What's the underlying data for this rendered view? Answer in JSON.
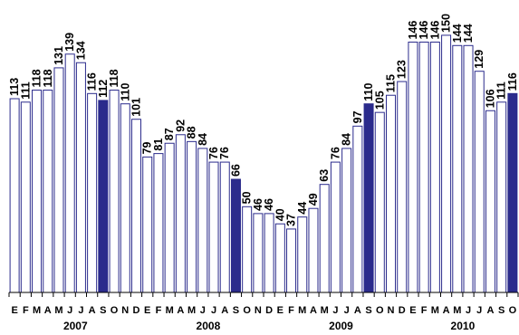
{
  "chart_data": {
    "type": "bar",
    "title": "",
    "xlabel": "",
    "ylabel": "",
    "ylim": [
      0,
      160
    ],
    "grid": false,
    "legend": "none",
    "colors": {
      "bar_fill": "#ffffff",
      "bar_stroke": "#2b2b8c",
      "highlight_fill": "#2b2b8c",
      "axis": "#000000"
    },
    "categories": [
      "E",
      "F",
      "M",
      "A",
      "M",
      "J",
      "J",
      "A",
      "S",
      "O",
      "N",
      "D",
      "E",
      "F",
      "M",
      "A",
      "M",
      "J",
      "J",
      "A",
      "S",
      "O",
      "N",
      "D",
      "E",
      "F",
      "M",
      "A",
      "M",
      "J",
      "J",
      "A",
      "S",
      "O",
      "N",
      "D",
      "E",
      "F",
      "M",
      "A",
      "M",
      "J",
      "J",
      "A",
      "S",
      "O"
    ],
    "values": [
      113,
      111,
      118,
      118,
      131,
      139,
      134,
      116,
      112,
      118,
      110,
      101,
      79,
      81,
      87,
      92,
      88,
      84,
      76,
      76,
      66,
      50,
      46,
      46,
      40,
      37,
      44,
      49,
      63,
      76,
      84,
      97,
      110,
      105,
      115,
      123,
      146,
      146,
      146,
      150,
      144,
      144,
      129,
      106,
      111,
      116
    ],
    "highlight_indices": [
      8,
      20,
      32,
      45
    ],
    "years": [
      {
        "label": "2007",
        "start": 0,
        "end": 11
      },
      {
        "label": "2008",
        "start": 12,
        "end": 23
      },
      {
        "label": "2009",
        "start": 24,
        "end": 35
      },
      {
        "label": "2010",
        "start": 36,
        "end": 45
      }
    ]
  }
}
